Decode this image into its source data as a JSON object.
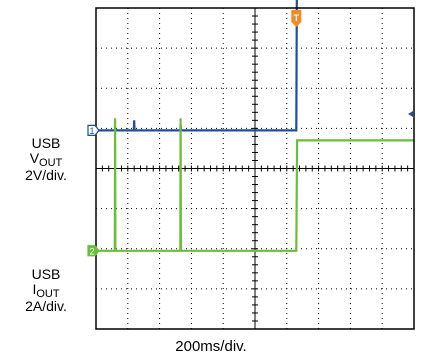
{
  "chart_data": {
    "type": "line",
    "title": "",
    "x_axis": {
      "label": "200ms/div.",
      "divisions": 10,
      "range_ms": [
        0,
        2000
      ]
    },
    "grid": true,
    "trigger_marker": "T",
    "colors": {
      "ch1": "#1f4e9c",
      "ch2": "#6abf3a",
      "trigger": "#f08a24",
      "grid": "#000000"
    },
    "series": [
      {
        "name": "USB VOUT",
        "label_main": "USB",
        "label_v": "V",
        "label_sub": "OUT",
        "scale": "2V/div.",
        "marker": "1",
        "unit": "V",
        "offset_div": 3.05,
        "x_ms": [
          0,
          238,
          240,
          242,
          530,
          532,
          534,
          1260,
          1265,
          2000
        ],
        "y": [
          0,
          0,
          0.5,
          0,
          0,
          0.3,
          0,
          0,
          10.1,
          10.1
        ]
      },
      {
        "name": "USB IOUT",
        "label_main": "USB",
        "label_v": "I",
        "label_sub": "OUT",
        "scale": "2A/div.",
        "marker": "2",
        "unit": "A",
        "offset_div": 6.05,
        "x_ms": [
          0,
          118,
          120,
          122,
          530,
          532,
          534,
          1260,
          1265,
          2000
        ],
        "y": [
          0,
          0,
          6.6,
          0,
          0,
          6.6,
          0,
          0,
          5.5,
          5.5
        ]
      }
    ]
  }
}
